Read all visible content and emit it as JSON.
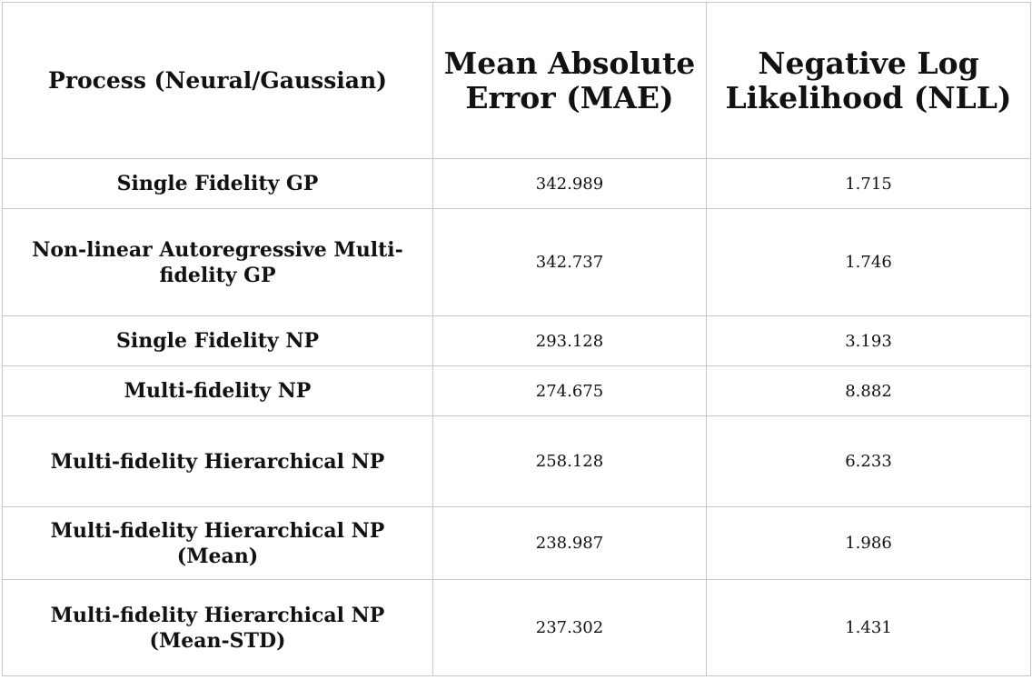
{
  "table": {
    "headers": [
      "Process (Neural/Gaussian)",
      "Mean Absolute Error (MAE)",
      "Negative Log Likelihood (NLL)"
    ],
    "rows": [
      {
        "method": "Single Fidelity GP",
        "mae": "342.989",
        "nll": "1.715"
      },
      {
        "method": "Non-linear Autoregressive Multi-fidelity GP",
        "mae": "342.737",
        "nll": "1.746"
      },
      {
        "method": "Single Fidelity NP",
        "mae": "293.128",
        "nll": "3.193"
      },
      {
        "method": "Multi-fidelity NP",
        "mae": "274.675",
        "nll": "8.882"
      },
      {
        "method": "Multi-fidelity Hierarchical NP",
        "mae": "258.128",
        "nll": "6.233"
      },
      {
        "method": "Multi-fidelity Hierarchical NP (Mean)",
        "mae": "238.987",
        "nll": "1.986"
      },
      {
        "method": "Multi-fidelity Hierarchical NP (Mean-STD)",
        "mae": "237.302",
        "nll": "1.431"
      }
    ]
  }
}
